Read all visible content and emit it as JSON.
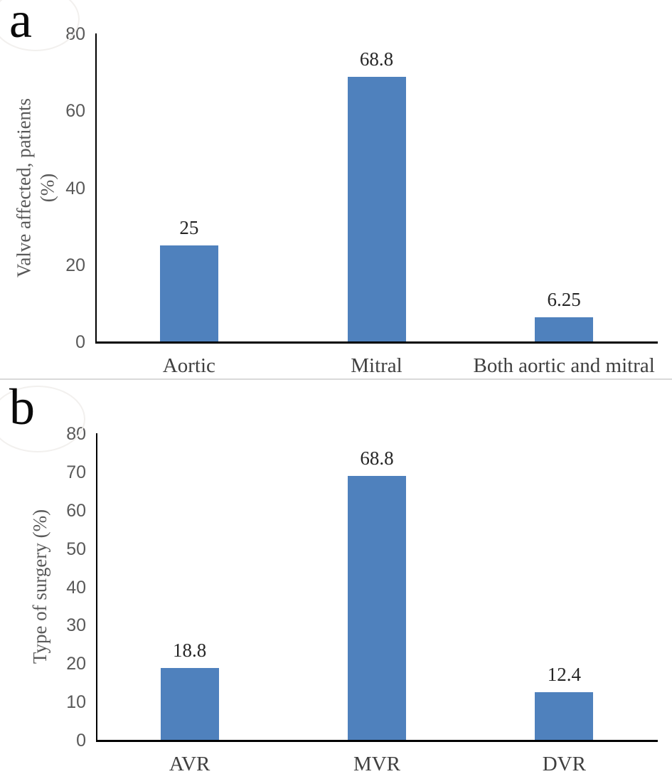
{
  "figure": {
    "panels": [
      {
        "letter": "a"
      },
      {
        "letter": "b"
      }
    ]
  },
  "colors": {
    "bar": "#4f81bd",
    "axis": "#000000",
    "tick_label": "#595959",
    "category_label": "#404040",
    "value_label": "#262626",
    "divider": "#d9d9d9"
  },
  "chart_data": [
    {
      "type": "bar",
      "title": "",
      "xlabel": "",
      "ylabel": "Valve affected, patients\n(%)",
      "categories": [
        "Aortic",
        "Mitral",
        "Both aortic and mitral"
      ],
      "values": [
        25,
        68.8,
        6.25
      ],
      "value_labels": [
        "25",
        "68.8",
        "6.25"
      ],
      "ylim": [
        0,
        80
      ],
      "yticks": [
        0,
        20,
        40,
        60,
        80
      ],
      "grid": false,
      "legend": false,
      "bar_color": "#4f81bd"
    },
    {
      "type": "bar",
      "title": "",
      "xlabel": "",
      "ylabel": "Type of surgery (%)",
      "categories": [
        "AVR",
        "MVR",
        "DVR"
      ],
      "values": [
        18.8,
        68.8,
        12.4
      ],
      "value_labels": [
        "18.8",
        "68.8",
        "12.4"
      ],
      "ylim": [
        0,
        80
      ],
      "yticks": [
        0,
        10,
        20,
        30,
        40,
        50,
        60,
        70,
        80
      ],
      "grid": false,
      "legend": false,
      "bar_color": "#4f81bd"
    }
  ]
}
